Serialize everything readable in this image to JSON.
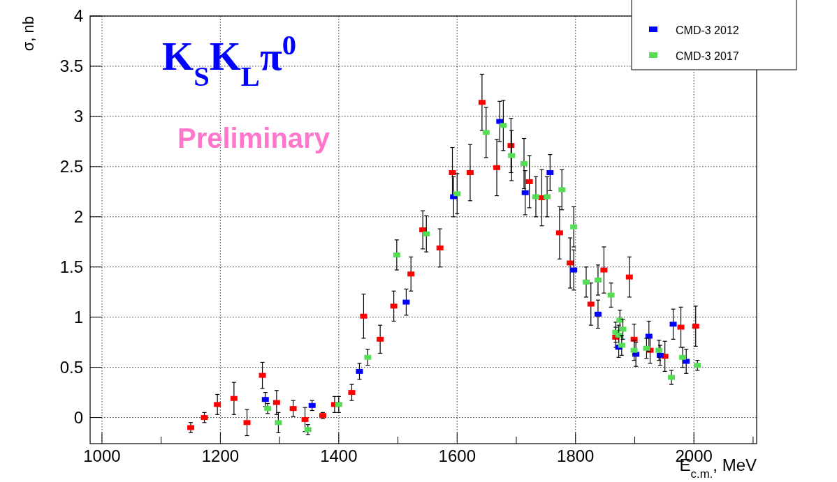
{
  "chart_data": {
    "type": "scatter",
    "title": "K$_{S}$K$_{L}$π$^{0}$",
    "annotations": [
      "Preliminary"
    ],
    "xlabel": "E$_{c.m.}$, MeV",
    "ylabel": "σ, nb",
    "xlim": [
      980,
      2106
    ],
    "ylim": [
      -0.26,
      4
    ],
    "xticks": [
      1000,
      {
        "value": 1100,
        "label": null
      },
      1200,
      {
        "value": 1300,
        "label": null
      },
      1400,
      {
        "value": 1500,
        "label": null
      },
      1600,
      {
        "value": 1700,
        "label": null
      },
      1800,
      {
        "value": 1900,
        "label": null
      },
      2000,
      {
        "value": 2100,
        "label": null
      }
    ],
    "yticks": [
      0,
      0.5,
      1,
      1.5,
      2,
      2.5,
      3,
      3.5,
      4
    ],
    "grid": true,
    "legend": "top right",
    "marker": "square",
    "series": [
      {
        "color": "#ff0000",
        "x": [
          1150,
          1173,
          1195,
          1223,
          1245,
          1271,
          1295,
          1323,
          1343,
          1373,
          1393,
          1422,
          1442,
          1470,
          1493,
          1522,
          1542,
          1571,
          1592,
          1622,
          1642,
          1667,
          1691,
          1722,
          1743,
          1773,
          1791,
          1826,
          1848,
          1868,
          1891,
          1899,
          1926,
          1951,
          1978,
          2003
        ],
        "values": [
          -0.1,
          0.0,
          0.13,
          0.19,
          -0.05,
          0.42,
          0.15,
          0.09,
          -0.02,
          0.02,
          0.13,
          0.25,
          1.01,
          0.78,
          1.11,
          1.43,
          1.87,
          1.69,
          2.44,
          2.44,
          3.14,
          2.49,
          2.71,
          2.35,
          2.19,
          1.84,
          1.54,
          1.13,
          1.47,
          0.8,
          1.4,
          0.78,
          0.67,
          0.61,
          0.9,
          0.91
        ],
        "errors": [
          0.05,
          0.05,
          0.1,
          0.16,
          0.13,
          0.13,
          0.12,
          0.08,
          0.12,
          0.03,
          0.08,
          0.08,
          0.22,
          0.14,
          0.15,
          0.17,
          0.19,
          0.19,
          0.25,
          0.28,
          0.28,
          0.28,
          0.27,
          0.26,
          0.28,
          0.26,
          0.25,
          0.21,
          0.23,
          0.1,
          0.2,
          0.15,
          0.13,
          0.15,
          0.2,
          0.2
        ]
      },
      {
        "name": "CMD-3 2012",
        "color": "#0000ff",
        "x": [
          1276,
          1355,
          1435,
          1514,
          1594,
          1672,
          1715,
          1757,
          1797,
          1838,
          1873,
          1902,
          1924,
          1943,
          1965,
          1987
        ],
        "values": [
          0.18,
          0.12,
          0.46,
          1.15,
          2.2,
          2.95,
          2.24,
          2.44,
          1.47,
          1.03,
          0.7,
          0.63,
          0.81,
          0.62,
          0.93,
          0.56
        ],
        "errors": [
          0.07,
          0.05,
          0.08,
          0.13,
          0.2,
          0.2,
          0.22,
          0.18,
          0.2,
          0.14,
          0.1,
          0.12,
          0.15,
          0.1,
          0.15,
          0.12
        ]
      },
      {
        "name": "CMD-3 2017",
        "color": "#55dd55",
        "x": [
          1280,
          1298,
          1348,
          1400,
          1449,
          1498,
          1548,
          1600,
          1649,
          1678,
          1692,
          1713,
          1733,
          1752,
          1777,
          1797,
          1818,
          1838,
          1860,
          1868,
          1875,
          1880,
          1873,
          1878,
          1899,
          1920,
          1941,
          1962,
          1981,
          2006
        ],
        "values": [
          0.09,
          -0.05,
          -0.12,
          0.13,
          0.6,
          1.62,
          1.83,
          2.23,
          2.84,
          2.91,
          2.61,
          2.53,
          2.2,
          2.2,
          2.27,
          1.9,
          1.35,
          1.37,
          1.22,
          0.85,
          0.97,
          0.88,
          0.82,
          0.72,
          0.67,
          0.69,
          0.67,
          0.4,
          0.6,
          0.52
        ],
        "errors": [
          0.05,
          0.1,
          0.05,
          0.08,
          0.08,
          0.15,
          0.18,
          0.2,
          0.25,
          0.25,
          0.25,
          0.25,
          0.2,
          0.2,
          0.2,
          0.2,
          0.15,
          0.15,
          0.12,
          0.1,
          0.1,
          0.1,
          0.1,
          0.1,
          0.1,
          0.1,
          0.1,
          0.07,
          0.1,
          0.05
        ]
      }
    ]
  }
}
